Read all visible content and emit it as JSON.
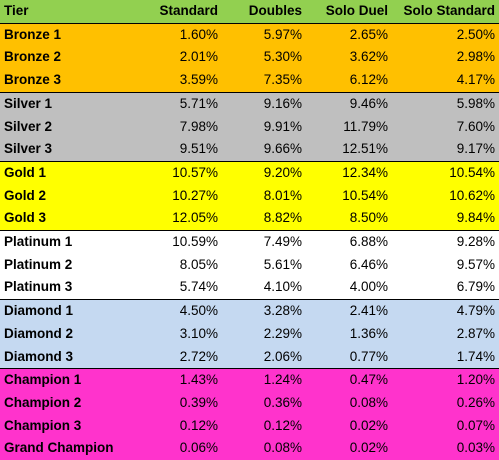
{
  "table": {
    "headers": [
      "Tier",
      "Standard",
      "Doubles",
      "Solo Duel",
      "Solo Standard"
    ],
    "rows": [
      {
        "tier": "Bronze 1",
        "standard": "1.60%",
        "doubles": "5.97%",
        "solo_duel": "2.65%",
        "solo_standard": "2.50%"
      },
      {
        "tier": "Bronze 2",
        "standard": "2.01%",
        "doubles": "5.30%",
        "solo_duel": "3.62%",
        "solo_standard": "2.98%"
      },
      {
        "tier": "Bronze 3",
        "standard": "3.59%",
        "doubles": "7.35%",
        "solo_duel": "6.12%",
        "solo_standard": "4.17%"
      },
      {
        "tier": "Silver 1",
        "standard": "5.71%",
        "doubles": "9.16%",
        "solo_duel": "9.46%",
        "solo_standard": "5.98%"
      },
      {
        "tier": "Silver 2",
        "standard": "7.98%",
        "doubles": "9.91%",
        "solo_duel": "11.79%",
        "solo_standard": "7.60%"
      },
      {
        "tier": "Silver 3",
        "standard": "9.51%",
        "doubles": "9.66%",
        "solo_duel": "12.51%",
        "solo_standard": "9.17%"
      },
      {
        "tier": "Gold 1",
        "standard": "10.57%",
        "doubles": "9.20%",
        "solo_duel": "12.34%",
        "solo_standard": "10.54%"
      },
      {
        "tier": "Gold 2",
        "standard": "10.27%",
        "doubles": "8.01%",
        "solo_duel": "10.54%",
        "solo_standard": "10.62%"
      },
      {
        "tier": "Gold 3",
        "standard": "12.05%",
        "doubles": "8.82%",
        "solo_duel": "8.50%",
        "solo_standard": "9.84%"
      },
      {
        "tier": "Platinum 1",
        "standard": "10.59%",
        "doubles": "7.49%",
        "solo_duel": "6.88%",
        "solo_standard": "9.28%"
      },
      {
        "tier": "Platinum 2",
        "standard": "8.05%",
        "doubles": "5.61%",
        "solo_duel": "6.46%",
        "solo_standard": "9.57%"
      },
      {
        "tier": "Platinum 3",
        "standard": "5.74%",
        "doubles": "4.10%",
        "solo_duel": "4.00%",
        "solo_standard": "6.79%"
      },
      {
        "tier": "Diamond 1",
        "standard": "4.50%",
        "doubles": "3.28%",
        "solo_duel": "2.41%",
        "solo_standard": "4.79%"
      },
      {
        "tier": "Diamond 2",
        "standard": "3.10%",
        "doubles": "2.29%",
        "solo_duel": "1.36%",
        "solo_standard": "2.87%"
      },
      {
        "tier": "Diamond 3",
        "standard": "2.72%",
        "doubles": "2.06%",
        "solo_duel": "0.77%",
        "solo_standard": "1.74%"
      },
      {
        "tier": "Champion 1",
        "standard": "1.43%",
        "doubles": "1.24%",
        "solo_duel": "0.47%",
        "solo_standard": "1.20%"
      },
      {
        "tier": "Champion 2",
        "standard": "0.39%",
        "doubles": "0.36%",
        "solo_duel": "0.08%",
        "solo_standard": "0.26%"
      },
      {
        "tier": "Champion 3",
        "standard": "0.12%",
        "doubles": "0.12%",
        "solo_duel": "0.02%",
        "solo_standard": "0.07%"
      },
      {
        "tier": "Grand Champion",
        "standard": "0.06%",
        "doubles": "0.08%",
        "solo_duel": "0.02%",
        "solo_standard": "0.03%"
      }
    ]
  },
  "colors": {
    "header": "#92d050",
    "bronze": "#ffc000",
    "silver": "#bfbfbf",
    "gold": "#ffff00",
    "platinum": "#ffffff",
    "diamond": "#c5d9f1",
    "champion": "#ff33cc"
  }
}
